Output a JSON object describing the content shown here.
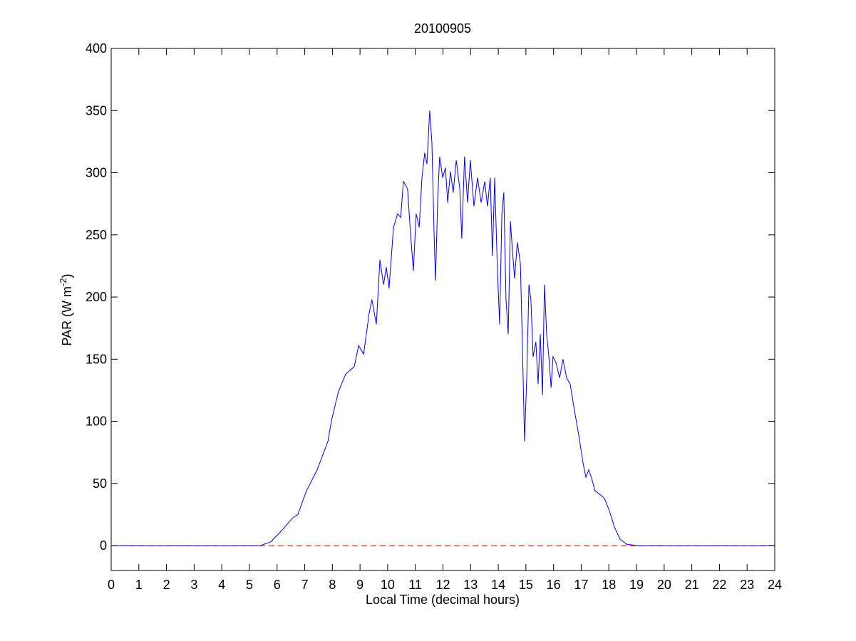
{
  "chart_data": {
    "type": "line",
    "title": "20100905",
    "x_label": "Local Time (decimal hours)",
    "y_label": {
      "text": "PAR (W m",
      "superscript": "-2",
      "suffix": ")"
    },
    "x": [
      0,
      5.39,
      5.77,
      6.16,
      6.55,
      6.75,
      7.06,
      7.45,
      7.84,
      7.97,
      8.22,
      8.48,
      8.79,
      8.95,
      9.13,
      9.33,
      9.43,
      9.59,
      9.72,
      9.85,
      9.95,
      10.05,
      10.21,
      10.36,
      10.47,
      10.57,
      10.72,
      10.83,
      10.93,
      11.03,
      11.14,
      11.24,
      11.34,
      11.42,
      11.52,
      11.6,
      11.68,
      11.73,
      11.81,
      11.88,
      11.99,
      12.09,
      12.17,
      12.27,
      12.37,
      12.48,
      12.61,
      12.68,
      12.78,
      12.89,
      12.99,
      13.12,
      13.25,
      13.38,
      13.51,
      13.61,
      13.71,
      13.79,
      13.87,
      13.97,
      14.05,
      14.13,
      14.2,
      14.28,
      14.36,
      14.44,
      14.51,
      14.59,
      14.69,
      14.8,
      14.87,
      14.95,
      15.03,
      15.11,
      15.18,
      15.26,
      15.36,
      15.44,
      15.52,
      15.6,
      15.67,
      15.75,
      15.83,
      15.91,
      15.98,
      16.09,
      16.22,
      16.34,
      16.47,
      16.6,
      16.73,
      16.91,
      17.07,
      17.17,
      17.27,
      17.38,
      17.5,
      17.69,
      17.84,
      18.02,
      18.2,
      18.41,
      18.66,
      19.05,
      24
    ],
    "series": [
      {
        "color": "#0000ff",
        "values": [
          0,
          0,
          3,
          12,
          22,
          25,
          44,
          61,
          84,
          101,
          124,
          138,
          144,
          161,
          154,
          187,
          198,
          178,
          230,
          210,
          224,
          207,
          256,
          267,
          264,
          293,
          287,
          250,
          221,
          267,
          256,
          296,
          316,
          307,
          350,
          324,
          250,
          213,
          279,
          313,
          296,
          304,
          276,
          301,
          284,
          310,
          287,
          247,
          313,
          276,
          310,
          273,
          296,
          276,
          293,
          273,
          296,
          233,
          296,
          221,
          178,
          267,
          284,
          198,
          170,
          261,
          238,
          215,
          244,
          227,
          164,
          84,
          135,
          210,
          198,
          152,
          164,
          130,
          170,
          121,
          210,
          170,
          152,
          127,
          152,
          147,
          135,
          150,
          135,
          130,
          112,
          89,
          66,
          55,
          61,
          54,
          44,
          41,
          38,
          28,
          15,
          5,
          1,
          0,
          0
        ]
      }
    ],
    "reference_line": {
      "value": 0,
      "color": "#cc0000",
      "style": "dashed"
    },
    "xlim": [
      0,
      24
    ],
    "xticks": [
      0,
      1,
      2,
      3,
      4,
      5,
      6,
      7,
      8,
      9,
      10,
      11,
      12,
      13,
      14,
      15,
      16,
      17,
      18,
      19,
      20,
      21,
      22,
      23,
      24
    ],
    "ylim": [
      -20,
      400
    ],
    "yticks": [
      0,
      50,
      100,
      150,
      200,
      250,
      300,
      350,
      400
    ],
    "grid": false
  }
}
